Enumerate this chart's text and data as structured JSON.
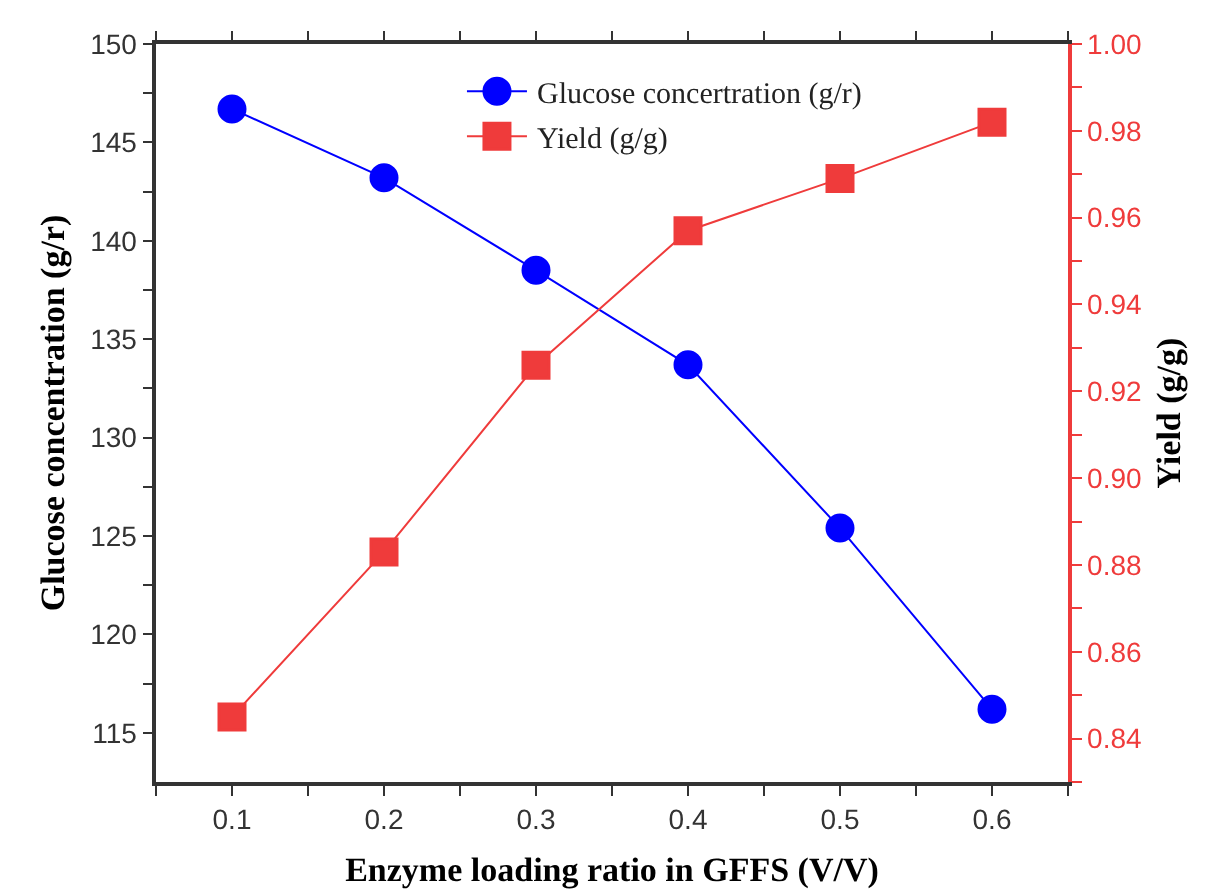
{
  "chart_data": {
    "type": "line",
    "xlabel": "Enzyme loading ratio in GFFS (V/V)",
    "ylabel": "Glucose concentration (g/r)",
    "y2label": "Yield (g/g)",
    "x": [
      0.1,
      0.2,
      0.3,
      0.4,
      0.5,
      0.6
    ],
    "series": [
      {
        "name": "Glucose concertration (g/r)",
        "color": "#0000ff",
        "marker": "circle",
        "values": [
          146.7,
          143.2,
          138.5,
          133.7,
          125.4,
          116.2
        ]
      },
      {
        "name": "Yield (g/g)",
        "color": "#ef3b3b",
        "marker": "square",
        "axis": "y2",
        "values": [
          0.845,
          0.883,
          0.926,
          0.957,
          0.969,
          0.982
        ]
      }
    ],
    "xlim": [
      0.05,
      0.65
    ],
    "xticks": [
      {
        "value": 0.05,
        "label": null
      },
      0.1,
      {
        "value": 0.15,
        "label": null
      },
      0.2,
      {
        "value": 0.25,
        "label": null
      },
      0.3,
      {
        "value": 0.35,
        "label": null
      },
      0.4,
      {
        "value": 0.45,
        "label": null
      },
      0.5,
      {
        "value": 0.55,
        "label": null
      },
      0.6,
      {
        "value": 0.65,
        "label": null
      }
    ],
    "ylim": [
      112.5,
      150
    ],
    "yticks": [
      115,
      {
        "value": 117.5,
        "label": null
      },
      120,
      {
        "value": 122.5,
        "label": null
      },
      125,
      {
        "value": 127.5,
        "label": null
      },
      130,
      {
        "value": 132.5,
        "label": null
      },
      135,
      {
        "value": 137.5,
        "label": null
      },
      140,
      {
        "value": 142.5,
        "label": null
      },
      145,
      {
        "value": 147.5,
        "label": null
      },
      150
    ],
    "y2lim": [
      0.83,
      1.0
    ],
    "y2ticks": [
      {
        "value": 0.83,
        "label": null
      },
      0.84,
      {
        "value": 0.85,
        "label": null
      },
      0.86,
      {
        "value": 0.87,
        "label": null
      },
      0.88,
      {
        "value": 0.89,
        "label": null
      },
      {
        "value": 0.9,
        "label": "0.90"
      },
      {
        "value": 0.91,
        "label": null
      },
      0.92,
      {
        "value": 0.93,
        "label": null
      },
      0.94,
      {
        "value": 0.95,
        "label": null
      },
      0.96,
      {
        "value": 0.97,
        "label": null
      },
      0.98,
      {
        "value": 0.99,
        "label": null
      },
      {
        "value": 1.0,
        "label": "1.00"
      }
    ],
    "grid": false,
    "legend": "top",
    "line_style": "solid"
  }
}
